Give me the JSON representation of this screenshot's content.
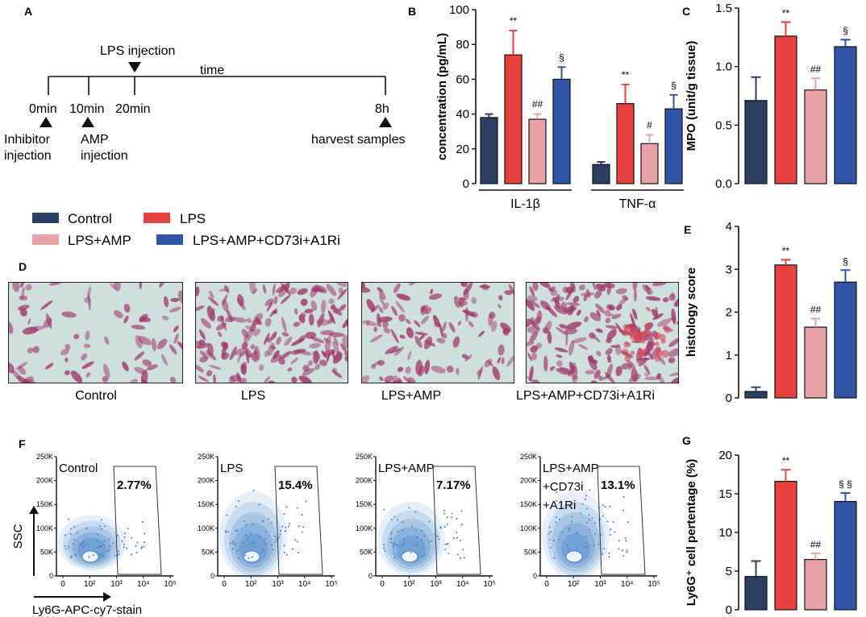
{
  "panel_letters": {
    "A": "A",
    "B": "B",
    "C": "C",
    "D": "D",
    "E": "E",
    "F": "F",
    "G": "G"
  },
  "colors": {
    "control": "#2c3e63",
    "lps": "#e8403d",
    "lps_amp": "#e9a3a7",
    "lps_amp_cd73": "#2f54a8",
    "flow": "#3b7fc4",
    "tissue_bg": "#cfe0dc",
    "tissue_fg": "#a0386b"
  },
  "timeline": {
    "time_label": "time",
    "ticks": [
      "0min",
      "10min",
      "20min",
      "8h"
    ],
    "lps_label": "LPS injection",
    "inhibitor_lines": [
      "Inhibitor",
      "injection"
    ],
    "amp_lines": [
      "AMP",
      "injection"
    ],
    "harvest_label": "harvest samples"
  },
  "legend": [
    {
      "label": "Control",
      "color": "#2c3e63"
    },
    {
      "label": "LPS",
      "color": "#e8403d"
    },
    {
      "label": "LPS+AMP",
      "color": "#e9a3a7"
    },
    {
      "label": "LPS+AMP+CD73i+A1Ri",
      "color": "#2f54a8"
    }
  ],
  "histology_captions": [
    "Control",
    "LPS",
    "LPS+AMP",
    "LPS+AMP+CD73i+A1Ri"
  ],
  "chart_data": [
    {
      "id": "B",
      "type": "bar",
      "ylabel": "concentration (pg/mL)",
      "ylim": [
        0,
        100
      ],
      "yticks": [
        0,
        20,
        40,
        60,
        80,
        100
      ],
      "group_labels": [
        "IL-1β",
        "TNF-α"
      ],
      "series": [
        {
          "name": "Control",
          "values": [
            38,
            11
          ],
          "errors": [
            2,
            1.5
          ],
          "sig": [
            "",
            ""
          ]
        },
        {
          "name": "LPS",
          "values": [
            74,
            46
          ],
          "errors": [
            14,
            11
          ],
          "sig": [
            "**",
            "**"
          ]
        },
        {
          "name": "LPS+AMP",
          "values": [
            37,
            23
          ],
          "errors": [
            3,
            5
          ],
          "sig": [
            "##",
            "#"
          ]
        },
        {
          "name": "LPS+AMP+CD73i+A1Ri",
          "values": [
            60,
            43
          ],
          "errors": [
            7,
            8
          ],
          "sig": [
            "§",
            "§"
          ]
        }
      ]
    },
    {
      "id": "C",
      "type": "bar",
      "ylabel": "MPO (unit/g tissue)",
      "ylim": [
        0,
        1.5
      ],
      "yticks": [
        "0.0",
        "0.5",
        "1.0",
        "1.5"
      ],
      "values": [
        0.71,
        1.26,
        0.8,
        1.17
      ],
      "errors": [
        0.2,
        0.12,
        0.1,
        0.06
      ],
      "sig": [
        "",
        "**",
        "##",
        "§"
      ]
    },
    {
      "id": "E",
      "type": "bar",
      "ylabel": "histology score",
      "ylim": [
        0,
        4
      ],
      "yticks": [
        "0",
        "1",
        "2",
        "3",
        "4"
      ],
      "values": [
        0.15,
        3.1,
        1.65,
        2.7
      ],
      "errors": [
        0.1,
        0.12,
        0.2,
        0.28
      ],
      "sig": [
        "",
        "**",
        "##",
        "§"
      ]
    },
    {
      "id": "G",
      "type": "bar",
      "ylabel": "Ly6G⁺ cell pertentage (%)",
      "ylim": [
        0,
        20
      ],
      "yticks": [
        "0",
        "5",
        "10",
        "15",
        "20"
      ],
      "values": [
        4.3,
        16.6,
        6.5,
        14
      ],
      "errors": [
        2,
        1.5,
        0.8,
        1.1
      ],
      "sig": [
        "",
        "**",
        "##",
        "§ §"
      ]
    },
    {
      "id": "F",
      "type": "scatter",
      "ylabel": "SSC",
      "xlabel": "Ly6G-APC-cy7-stain",
      "yticks": [
        "0",
        "50K",
        "100K",
        "150K",
        "200K",
        "250K"
      ],
      "xticks": [
        "0",
        "10²",
        "10³",
        "10⁴",
        "10⁵"
      ],
      "plots": [
        {
          "name": "Control",
          "label_lines": [
            "Control"
          ],
          "percent": "2.77%"
        },
        {
          "name": "LPS",
          "label_lines": [
            "LPS"
          ],
          "percent": "15.4%"
        },
        {
          "name": "LPS+AMP",
          "label_lines": [
            "LPS+AMP"
          ],
          "percent": "7.17%"
        },
        {
          "name": "LPS+AMP+CD73i+A1Ri",
          "label_lines": [
            "LPS+AMP",
            "+CD73i",
            "+A1Ri"
          ],
          "percent": "13.1%"
        }
      ]
    }
  ]
}
